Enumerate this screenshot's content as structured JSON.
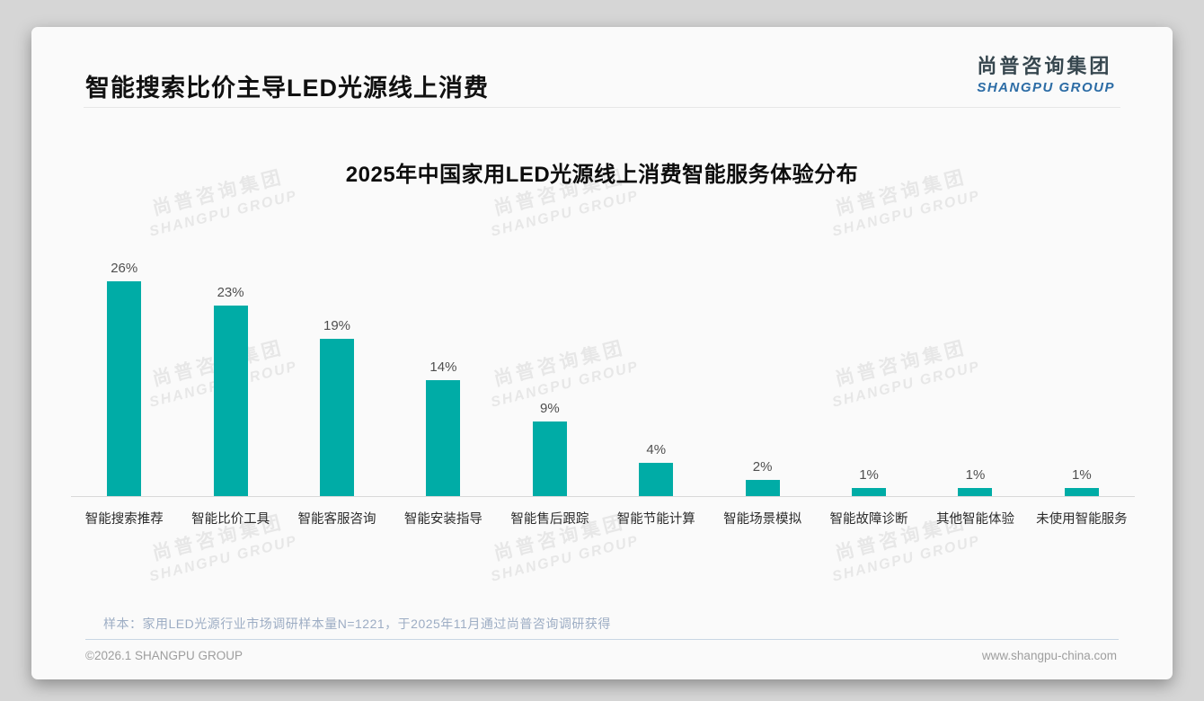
{
  "page": {
    "title": "智能搜索比价主导LED光源线上消费",
    "logo": {
      "cn": "尚普咨询集团",
      "en": "SHANGPU GROUP"
    },
    "watermark": {
      "line1": "尚普咨询集团",
      "line2": "SHANGPU GROUP"
    },
    "note": "样本：家用LED光源行业市场调研样本量N=1221，于2025年11月通过尚普咨询调研获得",
    "footer": {
      "left": "©2026.1 SHANGPU GROUP",
      "right": "www.shangpu-china.com"
    },
    "colors": {
      "bar": "#00aca6",
      "logo_cn": "#37474f",
      "logo_en": "#2c6ca5"
    }
  },
  "chart_data": {
    "type": "bar",
    "title": "2025年中国家用LED光源线上消费智能服务体验分布",
    "categories": [
      "智能搜索推荐",
      "智能比价工具",
      "智能客服咨询",
      "智能安装指导",
      "智能售后跟踪",
      "智能节能计算",
      "智能场景模拟",
      "智能故障诊断",
      "其他智能体验",
      "未使用智能服务"
    ],
    "values": [
      26,
      23,
      19,
      14,
      9,
      4,
      2,
      1,
      1,
      1
    ],
    "value_suffix": "%",
    "xlabel": "",
    "ylabel": "",
    "ylim": [
      0,
      28
    ],
    "grid": false,
    "legend": false,
    "bar_color": "#00aca6"
  }
}
